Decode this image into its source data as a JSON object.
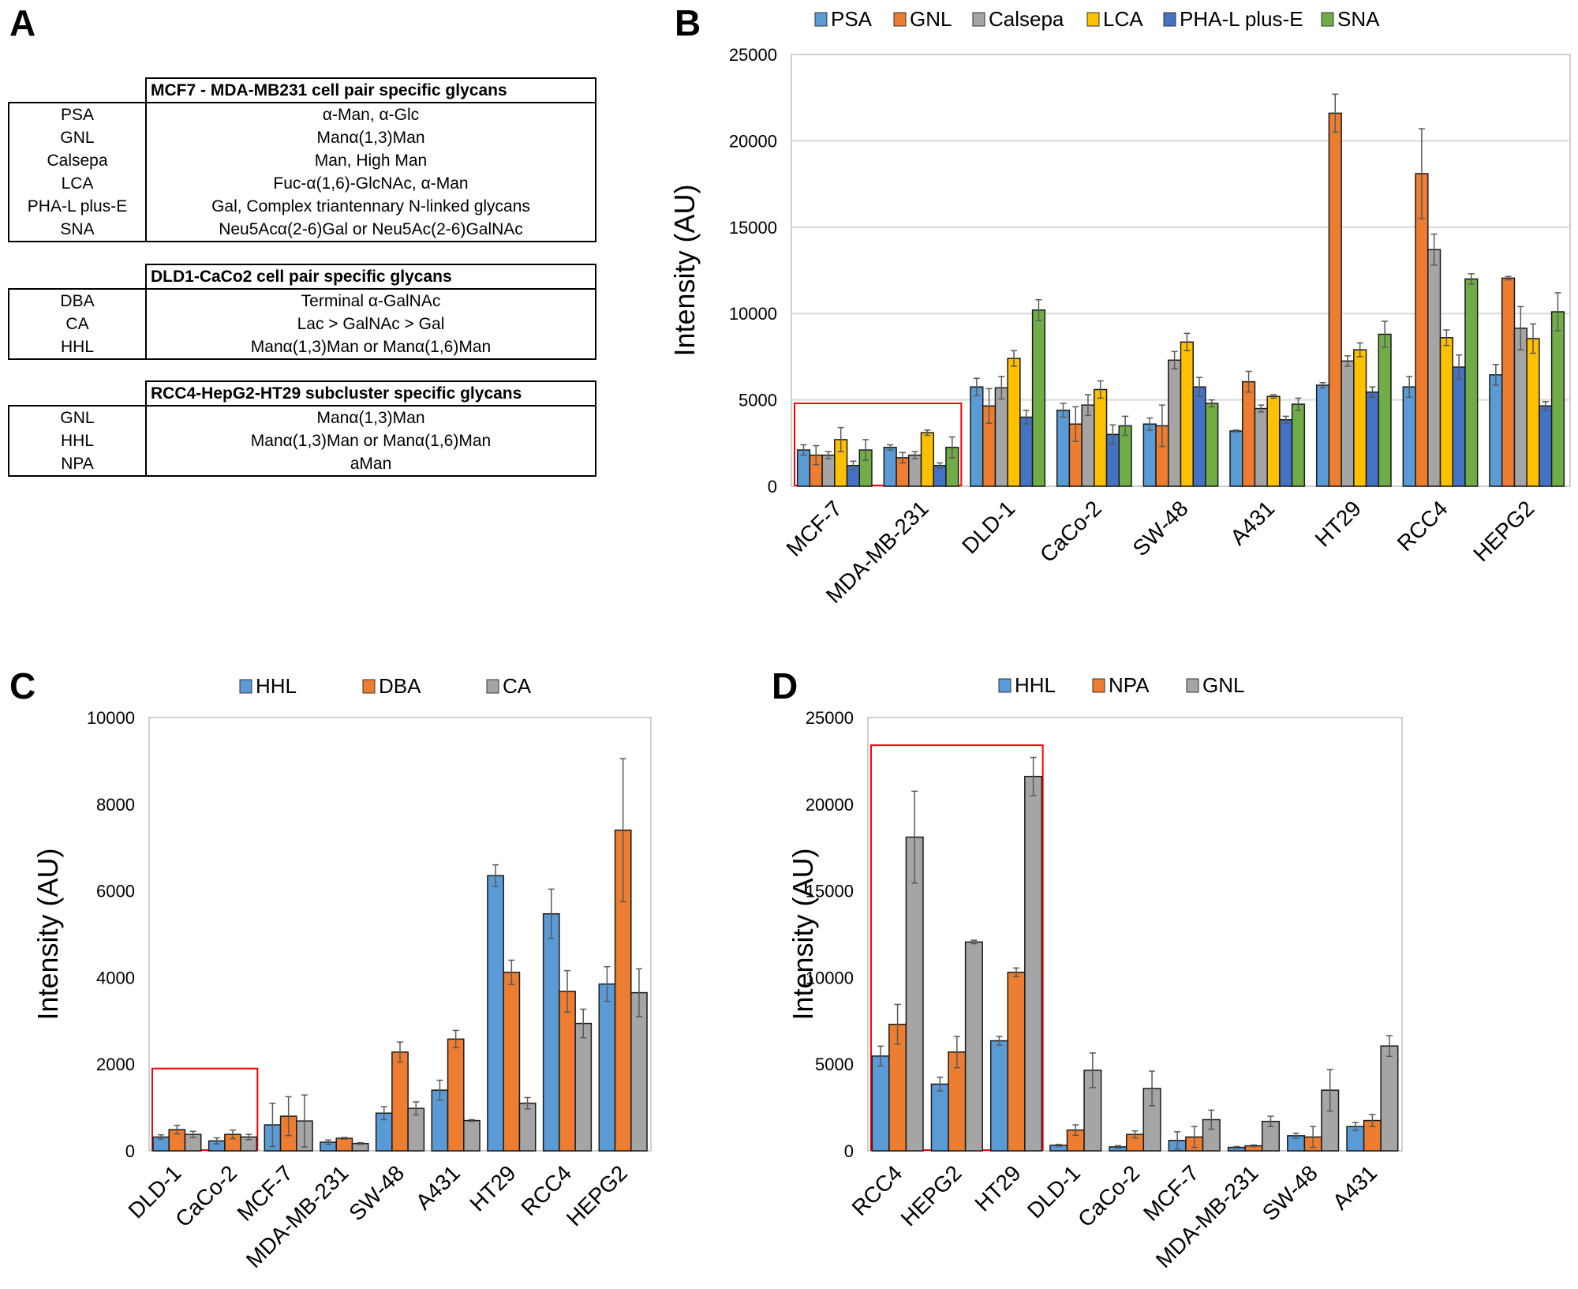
{
  "panel_labels": [
    "A",
    "B",
    "C",
    "D"
  ],
  "tables": [
    {
      "title": "MCF7 - MDA-MB231 cell pair specific glycans",
      "rows": [
        {
          "lectin": "PSA",
          "specificity": "α-Man, α-Glc"
        },
        {
          "lectin": "GNL",
          "specificity": "Manα(1,3)Man"
        },
        {
          "lectin": "Calsepa",
          "specificity": "Man, High Man"
        },
        {
          "lectin": "LCA",
          "specificity": "Fuc-α(1,6)-GlcNAc, α-Man"
        },
        {
          "lectin": "PHA-L plus-E",
          "specificity": "Gal, Complex triantennary N-linked glycans"
        },
        {
          "lectin": "SNA",
          "specificity": "Neu5Acα(2-6)Gal or Neu5Ac(2-6)GalNAc"
        }
      ]
    },
    {
      "title": "DLD1-CaCo2 cell pair specific glycans",
      "rows": [
        {
          "lectin": "DBA",
          "specificity": "Terminal α-GalNAc"
        },
        {
          "lectin": "CA",
          "specificity": "Lac > GalNAc > Gal"
        },
        {
          "lectin": "HHL",
          "specificity": "Manα(1,3)Man or Manα(1,6)Man"
        }
      ]
    },
    {
      "title": "RCC4-HepG2-HT29 subcluster specific glycans",
      "rows": [
        {
          "lectin": "GNL",
          "specificity": "Manα(1,3)Man"
        },
        {
          "lectin": "HHL",
          "specificity": "Manα(1,3)Man or Manα(1,6)Man"
        },
        {
          "lectin": "NPA",
          "specificity": "aMan"
        }
      ]
    }
  ],
  "chart_data": [
    {
      "panel": "B",
      "type": "bar",
      "ylabel": "Intensity (AU)",
      "ylim": [
        0,
        25000
      ],
      "yticks": [
        0,
        5000,
        10000,
        15000,
        20000,
        25000
      ],
      "grid": true,
      "legend_position": "top",
      "highlight_groups": [
        "MCF-7",
        "MDA-MB-231"
      ],
      "highlight_color": "#ff0000",
      "highlight_ymax": 4800,
      "categories": [
        "MCF-7",
        "MDA-MB-231",
        "DLD-1",
        "CaCo-2",
        "SW-48",
        "A431",
        "HT29",
        "RCC4",
        "HEPG2"
      ],
      "series": [
        {
          "name": "PSA",
          "color": "#5b9bd5",
          "values": [
            2100,
            2250,
            5750,
            4400,
            3600,
            3200,
            5850,
            5750,
            6450
          ],
          "errors": [
            300,
            150,
            500,
            400,
            350,
            50,
            150,
            600,
            600
          ]
        },
        {
          "name": "GNL",
          "color": "#ed7d31",
          "values": [
            1800,
            1650,
            4650,
            3600,
            3500,
            6050,
            21600,
            18100,
            12050
          ],
          "errors": [
            550,
            300,
            1000,
            1000,
            1200,
            600,
            1100,
            2600,
            100
          ]
        },
        {
          "name": "Calsepa",
          "color": "#a5a5a5",
          "values": [
            1800,
            1800,
            5700,
            4700,
            7300,
            4500,
            7250,
            13700,
            9150
          ],
          "errors": [
            200,
            200,
            650,
            600,
            500,
            200,
            300,
            900,
            1250
          ]
        },
        {
          "name": "LCA",
          "color": "#ffc000",
          "values": [
            2700,
            3100,
            7400,
            5600,
            8350,
            5200,
            7900,
            8600,
            8550
          ],
          "errors": [
            700,
            150,
            450,
            500,
            500,
            100,
            400,
            450,
            850
          ]
        },
        {
          "name": "PHA-L plus-E",
          "color": "#4472c4",
          "values": [
            1200,
            1200,
            4000,
            3000,
            5750,
            3850,
            5450,
            6900,
            4650
          ],
          "errors": [
            250,
            150,
            400,
            550,
            550,
            200,
            300,
            700,
            250
          ]
        },
        {
          "name": "SNA",
          "color": "#70ad47",
          "values": [
            2100,
            2250,
            10200,
            3500,
            4800,
            4750,
            8800,
            12000,
            10100
          ],
          "errors": [
            600,
            600,
            600,
            550,
            200,
            350,
            750,
            300,
            1100
          ]
        }
      ]
    },
    {
      "panel": "C",
      "type": "bar",
      "ylabel": "Intensity (AU)",
      "ylim": [
        0,
        10000
      ],
      "yticks": [
        0,
        2000,
        4000,
        6000,
        8000,
        10000
      ],
      "grid": false,
      "legend_position": "top",
      "highlight_groups": [
        "DLD-1",
        "CaCo-2"
      ],
      "highlight_color": "#ff0000",
      "highlight_ymax": 1900,
      "categories": [
        "DLD-1",
        "CaCo-2",
        "MCF-7",
        "MDA-MB-231",
        "SW-48",
        "A431",
        "HT29",
        "RCC4",
        "HEPG2"
      ],
      "series": [
        {
          "name": "HHL",
          "color": "#5b9bd5",
          "values": [
            320,
            230,
            600,
            200,
            870,
            1400,
            6350,
            5470,
            3850
          ],
          "errors": [
            50,
            70,
            500,
            50,
            150,
            230,
            250,
            570,
            400
          ]
        },
        {
          "name": "DBA",
          "color": "#ed7d31",
          "values": [
            490,
            380,
            800,
            290,
            2280,
            2580,
            4120,
            3680,
            7400
          ],
          "errors": [
            100,
            100,
            450,
            20,
            230,
            200,
            280,
            480,
            1650
          ]
        },
        {
          "name": "CA",
          "color": "#a5a5a5",
          "values": [
            380,
            320,
            690,
            170,
            980,
            700,
            1100,
            2940,
            3650
          ],
          "errors": [
            70,
            60,
            600,
            20,
            150,
            20,
            130,
            330,
            550
          ]
        }
      ]
    },
    {
      "panel": "D",
      "type": "bar",
      "ylabel": "Intensity (AU)",
      "ylim": [
        0,
        25000
      ],
      "yticks": [
        0,
        5000,
        10000,
        15000,
        20000,
        25000
      ],
      "grid": false,
      "legend_position": "top",
      "highlight_groups": [
        "RCC4",
        "HEPG2",
        "HT29"
      ],
      "highlight_color": "#ff0000",
      "highlight_ymax": 23400,
      "categories": [
        "RCC4",
        "HEPG2",
        "HT29",
        "DLD-1",
        "CaCo-2",
        "MCF-7",
        "MDA-MB-231",
        "SW-48",
        "A431"
      ],
      "series": [
        {
          "name": "HHL",
          "color": "#5b9bd5",
          "values": [
            5470,
            3850,
            6350,
            320,
            230,
            600,
            200,
            870,
            1400
          ],
          "errors": [
            570,
            400,
            250,
            50,
            70,
            500,
            50,
            150,
            230
          ]
        },
        {
          "name": "NPA",
          "color": "#ed7d31",
          "values": [
            7300,
            5700,
            10300,
            1200,
            950,
            800,
            290,
            800,
            1750
          ],
          "errors": [
            1150,
            900,
            250,
            300,
            200,
            600,
            50,
            600,
            350
          ]
        },
        {
          "name": "GNL",
          "color": "#a5a5a5",
          "values": [
            18100,
            12050,
            21600,
            4650,
            3600,
            1800,
            1700,
            3500,
            6050
          ],
          "errors": [
            2650,
            100,
            1100,
            1000,
            1000,
            550,
            300,
            1200,
            600
          ]
        }
      ]
    }
  ]
}
